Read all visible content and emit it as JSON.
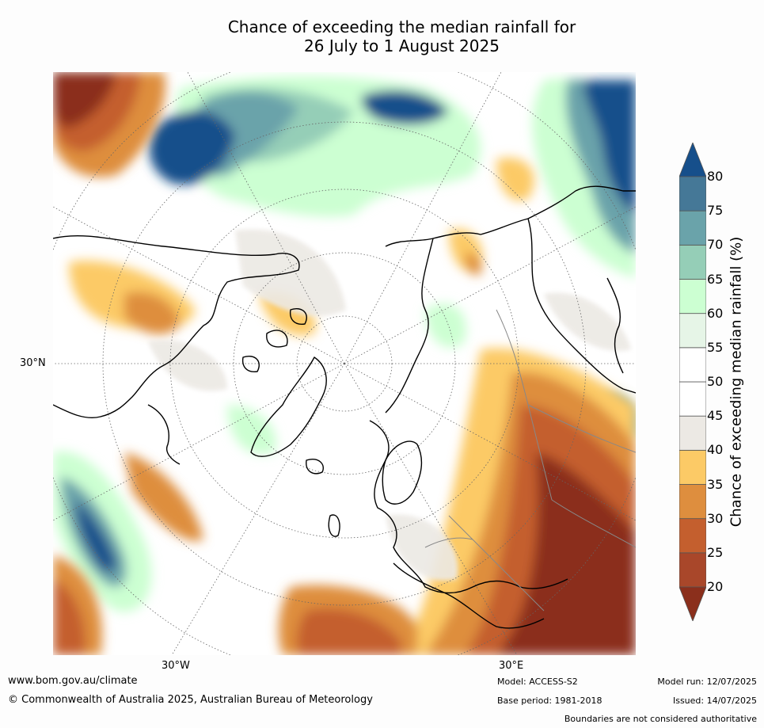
{
  "title": {
    "line1": "Chance of exceeding the median rainfall for",
    "line2": "26 July to 1 August 2025"
  },
  "map": {
    "projection_labels": {
      "lat_30n": "30°N",
      "lon_30w": "30°W",
      "lon_30e": "30°E"
    }
  },
  "colorbar": {
    "label": "Chance of exceeding median rainfall (%)",
    "ticks": [
      "20",
      "25",
      "30",
      "35",
      "40",
      "45",
      "50",
      "55",
      "60",
      "65",
      "70",
      "75",
      "80"
    ],
    "bins": [
      {
        "range": "<20",
        "color": "#8b2f1c"
      },
      {
        "range": "20-25",
        "color": "#a9472a"
      },
      {
        "range": "25-30",
        "color": "#c45f2e"
      },
      {
        "range": "30-35",
        "color": "#de8e3e"
      },
      {
        "range": "35-40",
        "color": "#fcca66"
      },
      {
        "range": "40-45",
        "color": "#ece9e4"
      },
      {
        "range": "45-50",
        "color": "#ffffff"
      },
      {
        "range": "50-55",
        "color": "#ffffff"
      },
      {
        "range": "55-60",
        "color": "#e6f5e7"
      },
      {
        "range": "60-65",
        "color": "#ccffd2"
      },
      {
        "range": "65-70",
        "color": "#95ceb7"
      },
      {
        "range": "70-75",
        "color": "#6aa3aa"
      },
      {
        "range": "75-80",
        "color": "#457897"
      },
      {
        "range": ">80",
        "color": "#164f8b"
      }
    ]
  },
  "footer": {
    "url": "www.bom.gov.au/climate",
    "copyright": "© Commonwealth of Australia 2025, Australian Bureau of Meteorology",
    "model": "Model: ACCESS-S2",
    "base_period": "Base period: 1981-2018",
    "model_run": "Model run: 12/07/2025",
    "issued": "Issued: 14/07/2025",
    "disclaimer": "Boundaries are not considered authoritative"
  }
}
